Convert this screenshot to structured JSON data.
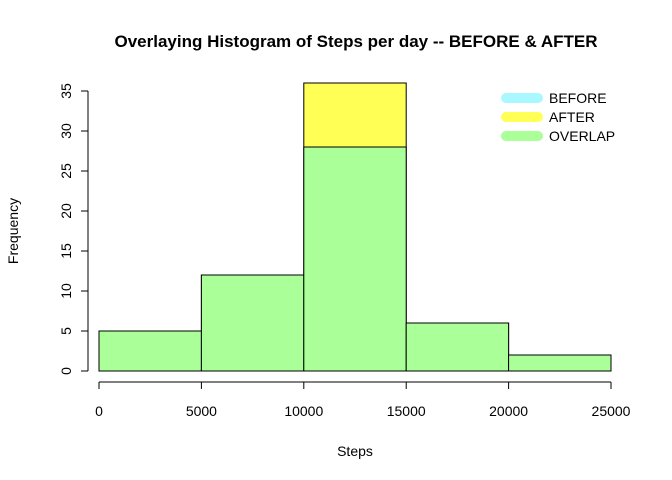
{
  "chart_data": {
    "type": "bar",
    "title": "Overlaying Histogram of Steps per day -- BEFORE & AFTER",
    "xlabel": "Steps",
    "ylabel": "Frequency",
    "xlim": [
      0,
      25000
    ],
    "ylim": [
      0,
      35
    ],
    "x_ticks": [
      0,
      5000,
      10000,
      15000,
      20000,
      25000
    ],
    "y_ticks": [
      0,
      5,
      10,
      15,
      20,
      25,
      30,
      35
    ],
    "bins": [
      [
        0,
        5000
      ],
      [
        5000,
        10000
      ],
      [
        10000,
        15000
      ],
      [
        15000,
        20000
      ],
      [
        20000,
        25000
      ]
    ],
    "series": [
      {
        "name": "BEFORE",
        "values": [
          5,
          12,
          28,
          6,
          2
        ],
        "color": "#aaf8ff"
      },
      {
        "name": "AFTER",
        "values": [
          5,
          12,
          36,
          6,
          2
        ],
        "color": "#ffff55"
      },
      {
        "name": "OVERLAP",
        "values": [
          5,
          12,
          28,
          6,
          2
        ],
        "color": "#aaff99"
      }
    ],
    "legend": {
      "position": "top-right",
      "entries": [
        {
          "label": "BEFORE",
          "color": "#aaf8ff"
        },
        {
          "label": "AFTER",
          "color": "#ffff55"
        },
        {
          "label": "OVERLAP",
          "color": "#aaff99"
        }
      ]
    }
  }
}
